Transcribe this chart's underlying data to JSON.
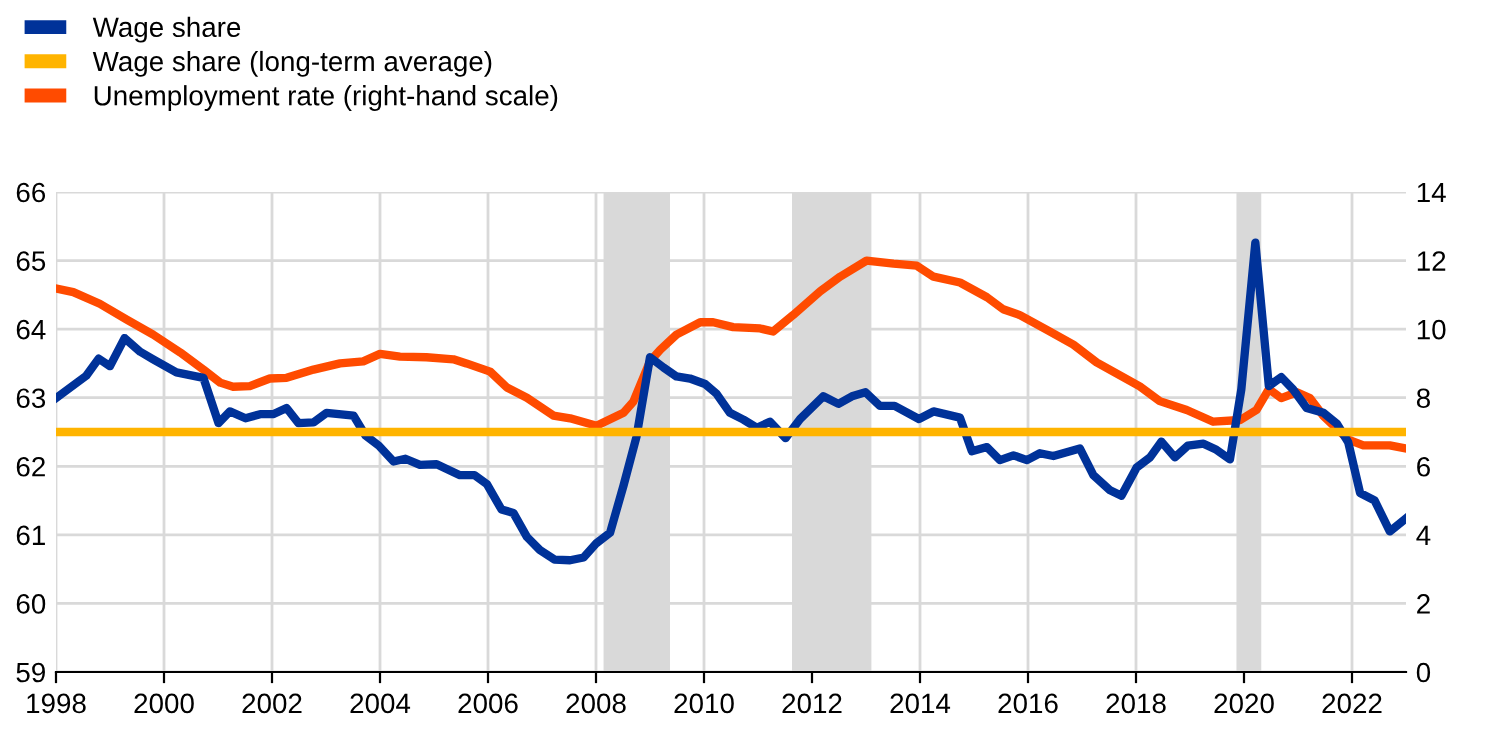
{
  "chart_data": {
    "type": "line",
    "xlim": [
      1998,
      2023
    ],
    "xticks": [
      1998,
      2000,
      2002,
      2004,
      2006,
      2008,
      2010,
      2012,
      2014,
      2016,
      2018,
      2020,
      2022
    ],
    "ylim": [
      59,
      66
    ],
    "yticks": [
      59,
      60,
      61,
      62,
      63,
      64,
      65,
      66
    ],
    "y2lim": [
      0,
      14
    ],
    "y2ticks": [
      0,
      2,
      4,
      6,
      8,
      10,
      12,
      14
    ],
    "grid": true,
    "legend": "top left",
    "bands": [
      {
        "axis": "x",
        "from": 2008.14,
        "to": 2009.37,
        "color": "#d9d9d9"
      },
      {
        "axis": "x",
        "from": 2011.63,
        "to": 2013.1,
        "color": "#d9d9d9"
      },
      {
        "axis": "x",
        "from": 2019.86,
        "to": 2020.32,
        "color": "#d9d9d9"
      }
    ],
    "series": [
      {
        "name": "Wage share",
        "color": "#003299",
        "x": [
          1998.01,
          1998.56,
          1998.79,
          1999.0,
          1999.27,
          1999.56,
          1999.8,
          2000.23,
          2000.73,
          2001.01,
          2001.22,
          2001.51,
          2001.78,
          2002.02,
          2002.27,
          2002.49,
          2002.77,
          2003.01,
          2003.51,
          2003.73,
          2003.98,
          2004.25,
          2004.47,
          2004.74,
          2005.05,
          2005.48,
          2005.75,
          2005.98,
          2006.25,
          2006.47,
          2006.72,
          2006.96,
          2007.23,
          2007.52,
          2007.77,
          2008.01,
          2008.26,
          2008.51,
          2008.75,
          2009.0,
          2009.25,
          2009.49,
          2009.74,
          2010.02,
          2010.23,
          2010.48,
          2010.73,
          2010.98,
          2011.22,
          2011.51,
          2011.78,
          2012.21,
          2012.49,
          2012.74,
          2012.99,
          2013.26,
          2013.53,
          2013.98,
          2014.25,
          2014.74,
          2014.96,
          2015.24,
          2015.48,
          2015.73,
          2015.98,
          2016.22,
          2016.47,
          2016.96,
          2017.21,
          2017.52,
          2017.73,
          2018.01,
          2018.26,
          2018.47,
          2018.72,
          2018.96,
          2019.25,
          2019.49,
          2019.74,
          2019.95,
          2020.21,
          2020.46,
          2020.69,
          2020.91,
          2021.16,
          2021.47,
          2021.72,
          2021.93,
          2022.15,
          2022.42,
          2022.7,
          2023.0
        ],
        "values": [
          63.0,
          63.32,
          63.57,
          63.46,
          63.87,
          63.67,
          63.56,
          63.37,
          63.29,
          62.63,
          62.8,
          62.7,
          62.76,
          62.76,
          62.85,
          62.63,
          62.64,
          62.78,
          62.74,
          62.45,
          62.3,
          62.07,
          62.11,
          62.02,
          62.03,
          61.87,
          61.87,
          61.74,
          61.37,
          61.32,
          60.97,
          60.78,
          60.64,
          60.63,
          60.67,
          60.88,
          61.03,
          61.72,
          62.43,
          63.59,
          63.44,
          63.31,
          63.28,
          63.2,
          63.06,
          62.78,
          62.68,
          62.56,
          62.65,
          62.41,
          62.69,
          63.02,
          62.91,
          63.02,
          63.08,
          62.88,
          62.88,
          62.69,
          62.8,
          62.71,
          62.22,
          62.28,
          62.09,
          62.16,
          62.09,
          62.19,
          62.15,
          62.26,
          61.87,
          61.65,
          61.57,
          61.98,
          62.13,
          62.36,
          62.13,
          62.3,
          62.33,
          62.24,
          62.1,
          63.12,
          65.26,
          63.17,
          63.3,
          63.12,
          62.85,
          62.78,
          62.62,
          62.35,
          61.61,
          61.5,
          61.05,
          61.24
        ]
      },
      {
        "name": "Wage share (long-term average)",
        "color": "#ffb400",
        "x": [
          1998,
          2023
        ],
        "values": [
          62.5,
          62.5
        ]
      },
      {
        "name": "Unemployment rate (right-hand scale)",
        "color": "#ff4b00",
        "axis": "y2",
        "x": [
          1998.01,
          1998.32,
          1998.81,
          1999.31,
          1999.8,
          2000.3,
          2000.73,
          2001.04,
          2001.28,
          2001.59,
          2001.96,
          2002.27,
          2002.77,
          2003.26,
          2003.69,
          2004.0,
          2004.37,
          2004.86,
          2005.36,
          2005.6,
          2006.04,
          2006.35,
          2006.72,
          2007.21,
          2007.52,
          2008.01,
          2008.51,
          2008.69,
          2009.0,
          2009.19,
          2009.49,
          2009.93,
          2010.17,
          2010.54,
          2011.04,
          2011.28,
          2011.65,
          2012.15,
          2012.52,
          2013.01,
          2013.51,
          2013.94,
          2014.25,
          2014.74,
          2015.24,
          2015.54,
          2015.85,
          2016.35,
          2016.84,
          2017.27,
          2017.77,
          2018.07,
          2018.44,
          2018.94,
          2019.43,
          2019.93,
          2020.23,
          2020.46,
          2020.69,
          2020.98,
          2021.22,
          2021.47,
          2021.93,
          2022.21,
          2022.7,
          2023.0
        ],
        "values": [
          11.18,
          11.08,
          10.74,
          10.28,
          9.84,
          9.32,
          8.82,
          8.44,
          8.32,
          8.34,
          8.56,
          8.58,
          8.82,
          9.0,
          9.06,
          9.28,
          9.2,
          9.18,
          9.12,
          9.0,
          8.76,
          8.3,
          8.0,
          7.48,
          7.4,
          7.18,
          7.56,
          7.88,
          9.06,
          9.4,
          9.84,
          10.2,
          10.2,
          10.06,
          10.02,
          9.93,
          10.41,
          11.1,
          11.53,
          12.0,
          11.91,
          11.85,
          11.53,
          11.36,
          10.93,
          10.58,
          10.41,
          9.98,
          9.55,
          9.03,
          8.59,
          8.33,
          7.9,
          7.64,
          7.3,
          7.35,
          7.64,
          8.25,
          7.99,
          8.16,
          7.99,
          7.47,
          6.78,
          6.61,
          6.61,
          6.52
        ]
      }
    ]
  }
}
